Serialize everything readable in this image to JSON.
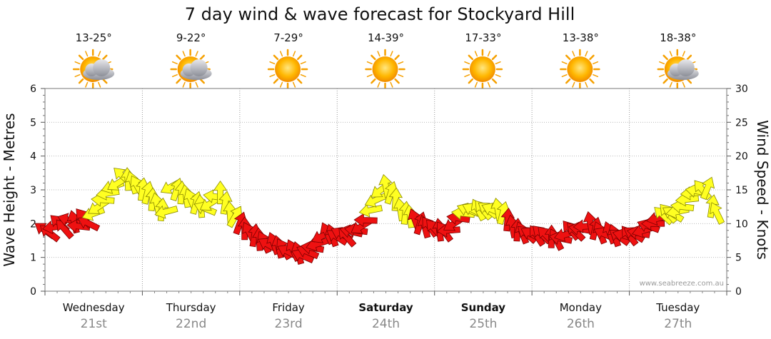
{
  "chart_data": {
    "type": "line",
    "title": "7 day wind & wave forecast for Stockyard Hill",
    "ylabel_left": "Wave Height - Metres",
    "ylabel_right": "Wind Speed - Knots",
    "ylim_left": [
      0,
      6
    ],
    "ylim_right": [
      0,
      30
    ],
    "yticks_left": [
      "0",
      "1",
      "2",
      "3",
      "4",
      "5",
      "6"
    ],
    "yticks_right": [
      "0",
      "5",
      "10",
      "15",
      "20",
      "25",
      "30"
    ],
    "credit": "www.seabreeze.com.au",
    "days": [
      {
        "name": "Wednesday",
        "date": "21st",
        "temp": "13-25°",
        "icon": "partly-cloudy-icon",
        "bold": false
      },
      {
        "name": "Thursday",
        "date": "22nd",
        "temp": "9-22°",
        "icon": "partly-cloudy-icon",
        "bold": false
      },
      {
        "name": "Friday",
        "date": "23rd",
        "temp": "7-29°",
        "icon": "sun-icon",
        "bold": false
      },
      {
        "name": "Saturday",
        "date": "24th",
        "temp": "14-39°",
        "icon": "sun-icon",
        "bold": true
      },
      {
        "name": "Sunday",
        "date": "25th",
        "temp": "17-33°",
        "icon": "sun-icon",
        "bold": true
      },
      {
        "name": "Monday",
        "date": "26th",
        "temp": "13-38°",
        "icon": "sun-icon",
        "bold": false
      },
      {
        "name": "Tuesday",
        "date": "27th",
        "temp": "18-38°",
        "icon": "partly-cloudy-icon",
        "bold": false
      }
    ],
    "wind_series": {
      "name": "Wind Speed (knots)",
      "x_days": [
        0.0,
        0.05,
        0.1,
        0.15,
        0.2,
        0.25,
        0.3,
        0.35,
        0.4,
        0.45,
        0.5,
        0.55,
        0.6,
        0.65,
        0.7,
        0.75,
        0.8,
        0.85,
        0.9,
        0.95,
        1.0,
        1.05,
        1.1,
        1.15,
        1.2,
        1.25,
        1.3,
        1.35,
        1.4,
        1.45,
        1.5,
        1.55,
        1.6,
        1.65,
        1.7,
        1.75,
        1.8,
        1.85,
        1.9,
        1.95,
        2.0,
        2.05,
        2.1,
        2.15,
        2.2,
        2.25,
        2.3,
        2.35,
        2.4,
        2.45,
        2.5,
        2.55,
        2.6,
        2.65,
        2.7,
        2.75,
        2.8,
        2.85,
        2.9,
        2.95,
        3.0,
        3.05,
        3.1,
        3.15,
        3.2,
        3.25,
        3.3,
        3.35,
        3.4,
        3.45,
        3.5,
        3.55,
        3.6,
        3.65,
        3.7,
        3.75,
        3.8,
        3.85,
        3.9,
        3.95,
        4.0,
        4.05,
        4.1,
        4.15,
        4.2,
        4.25,
        4.3,
        4.35,
        4.4,
        4.45,
        4.5,
        4.55,
        4.6,
        4.65,
        4.7,
        4.75,
        4.8,
        4.85,
        4.9,
        4.95,
        5.0,
        5.05,
        5.1,
        5.15,
        5.2,
        5.25,
        5.3,
        5.35,
        5.4,
        5.45,
        5.5,
        5.55,
        5.6,
        5.65,
        5.7,
        5.75,
        5.8,
        5.85,
        5.9,
        5.95,
        6.0,
        6.05,
        6.1,
        6.15,
        6.2,
        6.25,
        6.3,
        6.35,
        6.4,
        6.45,
        6.5,
        6.55,
        6.6,
        6.65,
        6.7,
        6.75,
        6.8,
        6.85,
        6.9
      ],
      "values": [
        9.0,
        8.6,
        9.5,
        10.0,
        9.2,
        10.5,
        10.2,
        9.6,
        10.8,
        10.0,
        11.5,
        12.5,
        13.5,
        14.5,
        15.5,
        16.0,
        17.0,
        16.5,
        16.0,
        15.5,
        15.0,
        14.5,
        13.5,
        12.8,
        12.0,
        11.8,
        15.5,
        15.0,
        14.5,
        14.0,
        13.5,
        13.0,
        12.5,
        12.2,
        13.0,
        14.0,
        14.5,
        13.0,
        11.5,
        11.0,
        10.0,
        9.2,
        8.6,
        8.2,
        7.6,
        7.2,
        6.8,
        7.0,
        6.5,
        6.2,
        5.8,
        6.0,
        5.6,
        5.2,
        5.8,
        6.4,
        7.0,
        8.2,
        8.5,
        8.2,
        8.0,
        8.4,
        8.0,
        8.8,
        9.0,
        9.6,
        10.5,
        12.0,
        13.5,
        15.0,
        15.5,
        14.5,
        13.5,
        12.0,
        11.5,
        11.0,
        10.5,
        10.0,
        9.5,
        9.5,
        9.2,
        9.0,
        8.8,
        9.0,
        10.0,
        10.8,
        11.5,
        12.0,
        12.0,
        12.0,
        12.0,
        12.0,
        12.0,
        12.0,
        11.5,
        10.5,
        9.5,
        9.0,
        8.6,
        8.4,
        8.4,
        8.2,
        8.4,
        8.2,
        8.0,
        7.6,
        7.8,
        8.4,
        9.0,
        8.8,
        9.2,
        9.6,
        10.0,
        9.2,
        8.6,
        8.4,
        8.6,
        8.2,
        8.0,
        8.2,
        8.2,
        8.4,
        8.6,
        9.0,
        9.6,
        10.0,
        10.8,
        11.2,
        11.5,
        11.4,
        11.8,
        12.5,
        13.6,
        14.5,
        14.8,
        15.0,
        15.2,
        12.5,
        11.5
      ],
      "moderate_color": "#ffff22",
      "strong_color": "#ee1111",
      "moderate_threshold_knots": 11
    }
  }
}
